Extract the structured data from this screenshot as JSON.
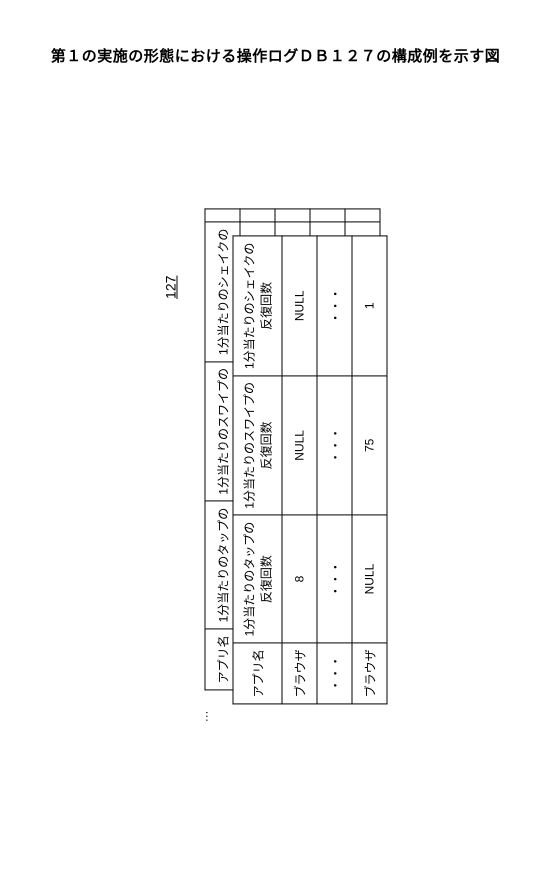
{
  "caption": "第１の実施の形態における操作ログＤＢ１２７の構成例を示す図",
  "figure_label": "127",
  "corner_dots": "…",
  "back_header": {
    "app": "アプリ名",
    "tap": "1分当たりのタップの",
    "swipe": "1分当たりのスワイプの",
    "shake": "1分当たりのシェイクの"
  },
  "front_header": {
    "app": "アプリ名",
    "tap": "1分当たりのタップの\n反復回数",
    "swipe": "1分当たりのスワイプの\n反復回数",
    "shake": "1分当たりのシェイクの\n反復回数"
  },
  "rows": [
    {
      "app": "ブラウザ",
      "tap": "8",
      "swipe": "NULL",
      "shake": "NULL"
    },
    {
      "app": "・・・",
      "tap": "・・・",
      "swipe": "・・・",
      "shake": "・・・"
    },
    {
      "app": "ブラウザ",
      "tap": "NULL",
      "swipe": "75",
      "shake": "1"
    }
  ]
}
